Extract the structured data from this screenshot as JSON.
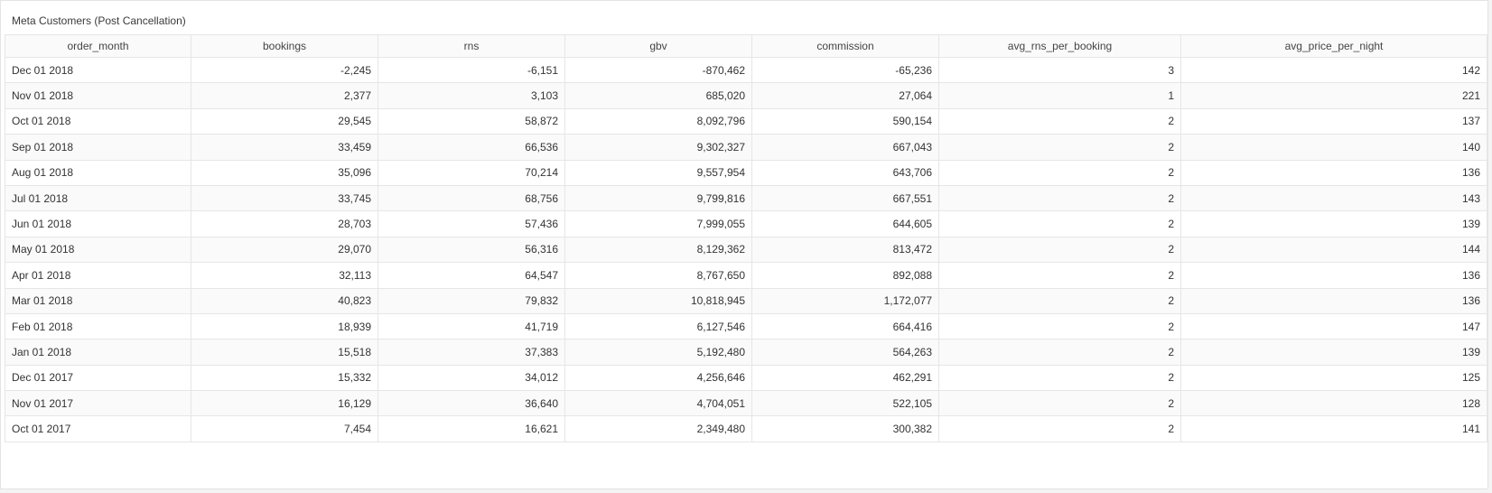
{
  "card": {
    "title": "Meta Customers (Post Cancellation)"
  },
  "table": {
    "headers": [
      "order_month",
      "bookings",
      "rns",
      "gbv",
      "commission",
      "avg_rns_per_booking",
      "avg_price_per_night"
    ],
    "rows": [
      [
        "Dec 01 2018",
        "-2,245",
        "-6,151",
        "-870,462",
        "-65,236",
        "3",
        "142"
      ],
      [
        "Nov 01 2018",
        "2,377",
        "3,103",
        "685,020",
        "27,064",
        "1",
        "221"
      ],
      [
        "Oct 01 2018",
        "29,545",
        "58,872",
        "8,092,796",
        "590,154",
        "2",
        "137"
      ],
      [
        "Sep 01 2018",
        "33,459",
        "66,536",
        "9,302,327",
        "667,043",
        "2",
        "140"
      ],
      [
        "Aug 01 2018",
        "35,096",
        "70,214",
        "9,557,954",
        "643,706",
        "2",
        "136"
      ],
      [
        "Jul 01 2018",
        "33,745",
        "68,756",
        "9,799,816",
        "667,551",
        "2",
        "143"
      ],
      [
        "Jun 01 2018",
        "28,703",
        "57,436",
        "7,999,055",
        "644,605",
        "2",
        "139"
      ],
      [
        "May 01 2018",
        "29,070",
        "56,316",
        "8,129,362",
        "813,472",
        "2",
        "144"
      ],
      [
        "Apr 01 2018",
        "32,113",
        "64,547",
        "8,767,650",
        "892,088",
        "2",
        "136"
      ],
      [
        "Mar 01 2018",
        "40,823",
        "79,832",
        "10,818,945",
        "1,172,077",
        "2",
        "136"
      ],
      [
        "Feb 01 2018",
        "18,939",
        "41,719",
        "6,127,546",
        "664,416",
        "2",
        "147"
      ],
      [
        "Jan 01 2018",
        "15,518",
        "37,383",
        "5,192,480",
        "564,263",
        "2",
        "139"
      ],
      [
        "Dec 01 2017",
        "15,332",
        "34,012",
        "4,256,646",
        "462,291",
        "2",
        "125"
      ],
      [
        "Nov 01 2017",
        "16,129",
        "36,640",
        "4,704,051",
        "522,105",
        "2",
        "128"
      ],
      [
        "Oct 01 2017",
        "7,454",
        "16,621",
        "2,349,480",
        "300,382",
        "2",
        "141"
      ]
    ]
  }
}
